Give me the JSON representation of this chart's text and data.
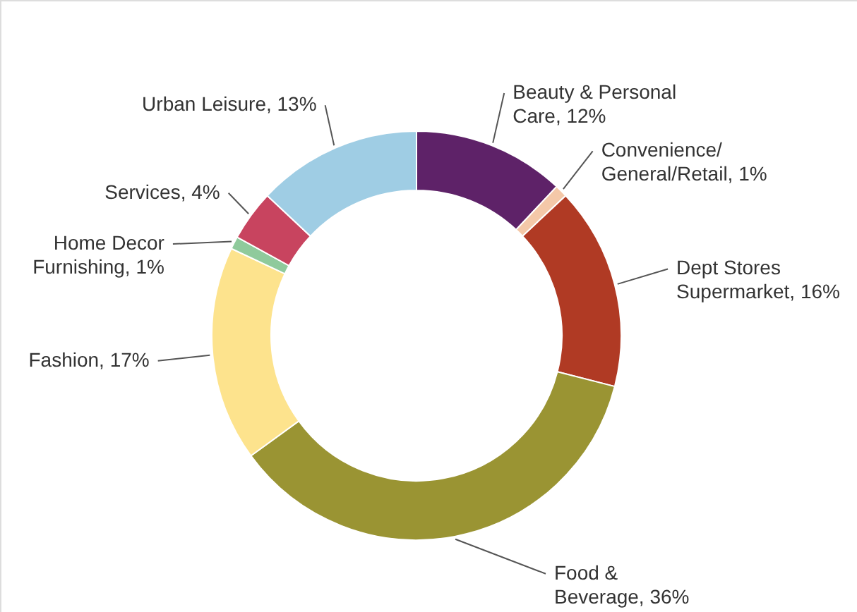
{
  "chart_data": {
    "type": "donut",
    "categories": [
      "Beauty & Personal Care",
      "Convenience/General/Retail",
      "Dept Stores Supermarket",
      "Food & Beverage",
      "Fashion",
      "Home Decor Furnishing",
      "Services",
      "Urban Leisure"
    ],
    "values": [
      12,
      1,
      16,
      36,
      17,
      1,
      4,
      13
    ],
    "value_labels": [
      "12%",
      "1%",
      "16%",
      "36%",
      "17%",
      "1%",
      "4%",
      "13%"
    ],
    "colors": [
      "#5e2268",
      "#f4c8a8",
      "#b03a24",
      "#9a9433",
      "#fde38d",
      "#8fca9c",
      "#c8445f",
      "#9fcde4"
    ]
  }
}
